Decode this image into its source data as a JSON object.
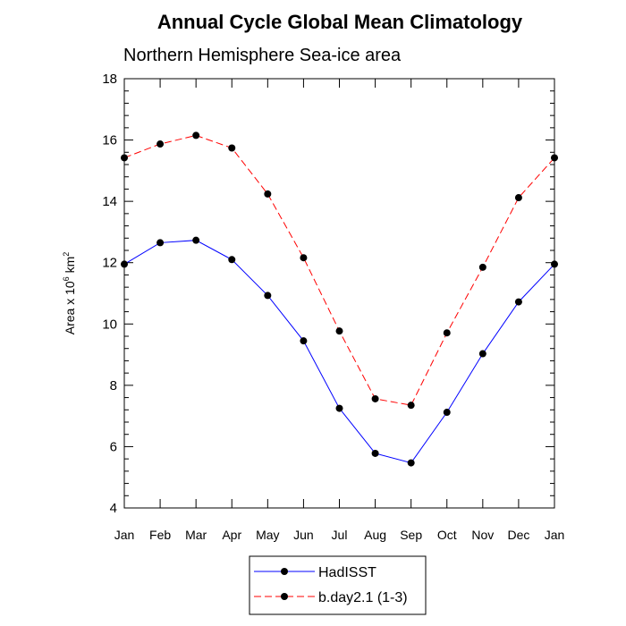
{
  "chart_data": {
    "type": "line",
    "title": "Annual Cycle Global Mean Climatology",
    "subtitle": "Northern Hemisphere Sea-ice area",
    "xlabel": "",
    "ylabel": {
      "prefix": "Area x 10",
      "exp": "6",
      "unit": "km",
      "unit_exp": "2"
    },
    "categories": [
      "Jan",
      "Feb",
      "Mar",
      "Apr",
      "May",
      "Jun",
      "Jul",
      "Aug",
      "Sep",
      "Oct",
      "Nov",
      "Dec",
      "Jan"
    ],
    "ylim": [
      4,
      18
    ],
    "yticks": [
      "4",
      "6",
      "8",
      "10",
      "12",
      "14",
      "16",
      "18"
    ],
    "grid": false,
    "legend_placement": "bottom",
    "series": [
      {
        "name": "HadISST",
        "color": "#0000ff",
        "line_style": "solid",
        "marker": "circle",
        "values": [
          11.95,
          12.65,
          12.73,
          12.1,
          10.93,
          9.45,
          7.25,
          5.78,
          5.47,
          7.12,
          9.03,
          10.72,
          11.95
        ]
      },
      {
        "name": "b.day2.1 (1-3)",
        "color": "#ff0000",
        "line_style": "dashed",
        "marker": "circle",
        "values": [
          15.42,
          15.87,
          16.15,
          15.74,
          14.24,
          12.16,
          9.77,
          7.56,
          7.35,
          9.71,
          11.85,
          14.12,
          15.42
        ]
      }
    ]
  }
}
